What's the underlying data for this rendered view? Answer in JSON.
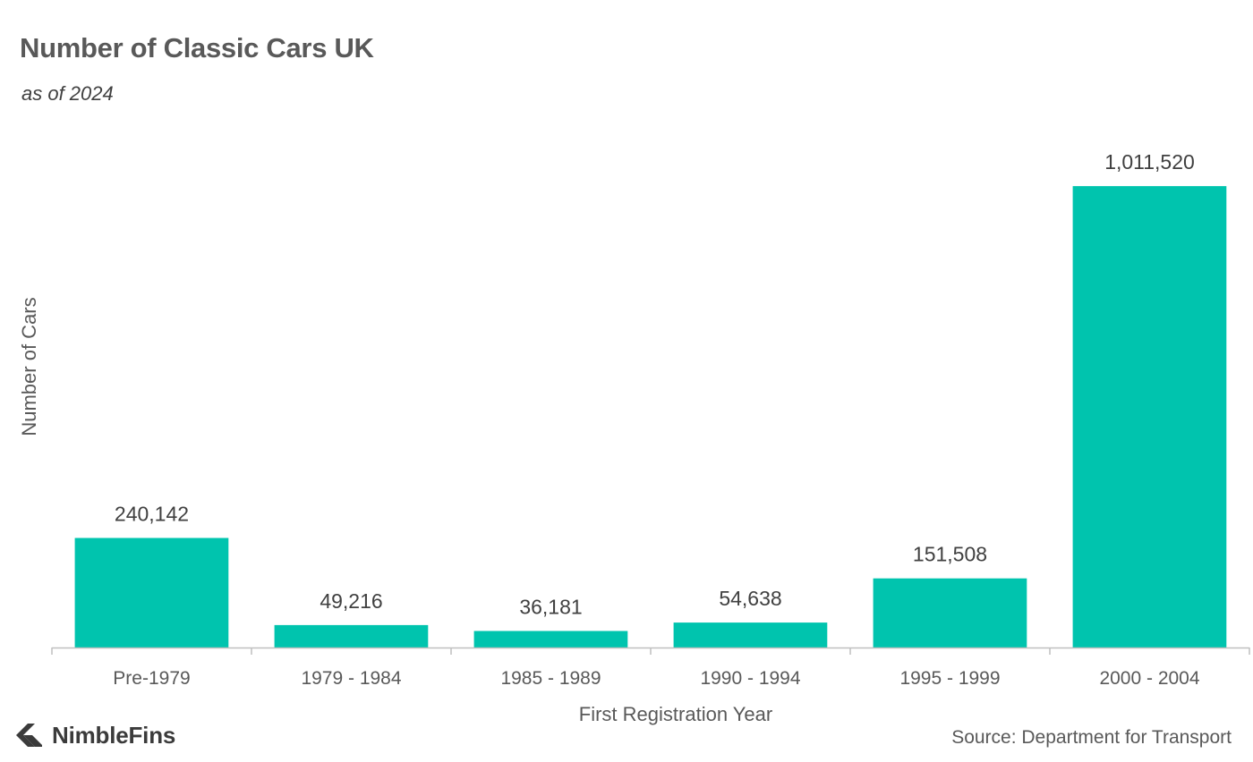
{
  "chart_data": {
    "type": "bar",
    "title": "Number of Classic Cars UK",
    "subtitle": "as of 2024",
    "xlabel": "First Registration Year",
    "ylabel": "Number of Cars",
    "categories": [
      "Pre-1979",
      "1979 - 1984",
      "1985 - 1989",
      "1990 - 1994",
      "1995 - 1999",
      "2000 - 2004"
    ],
    "values": [
      240142,
      49216,
      36181,
      54638,
      151508,
      1011520
    ],
    "data_labels": [
      "240,142",
      "49,216",
      "36,181",
      "54,638",
      "151,508",
      "1,011,520"
    ],
    "ylim": [
      0,
      1100000
    ],
    "grid": false,
    "legend": "none",
    "bar_color": "#00C4AE",
    "source": "Source: Department for Transport"
  },
  "brand": {
    "name": "NimbleFins",
    "logo_icon": "chevron-left-icon"
  }
}
